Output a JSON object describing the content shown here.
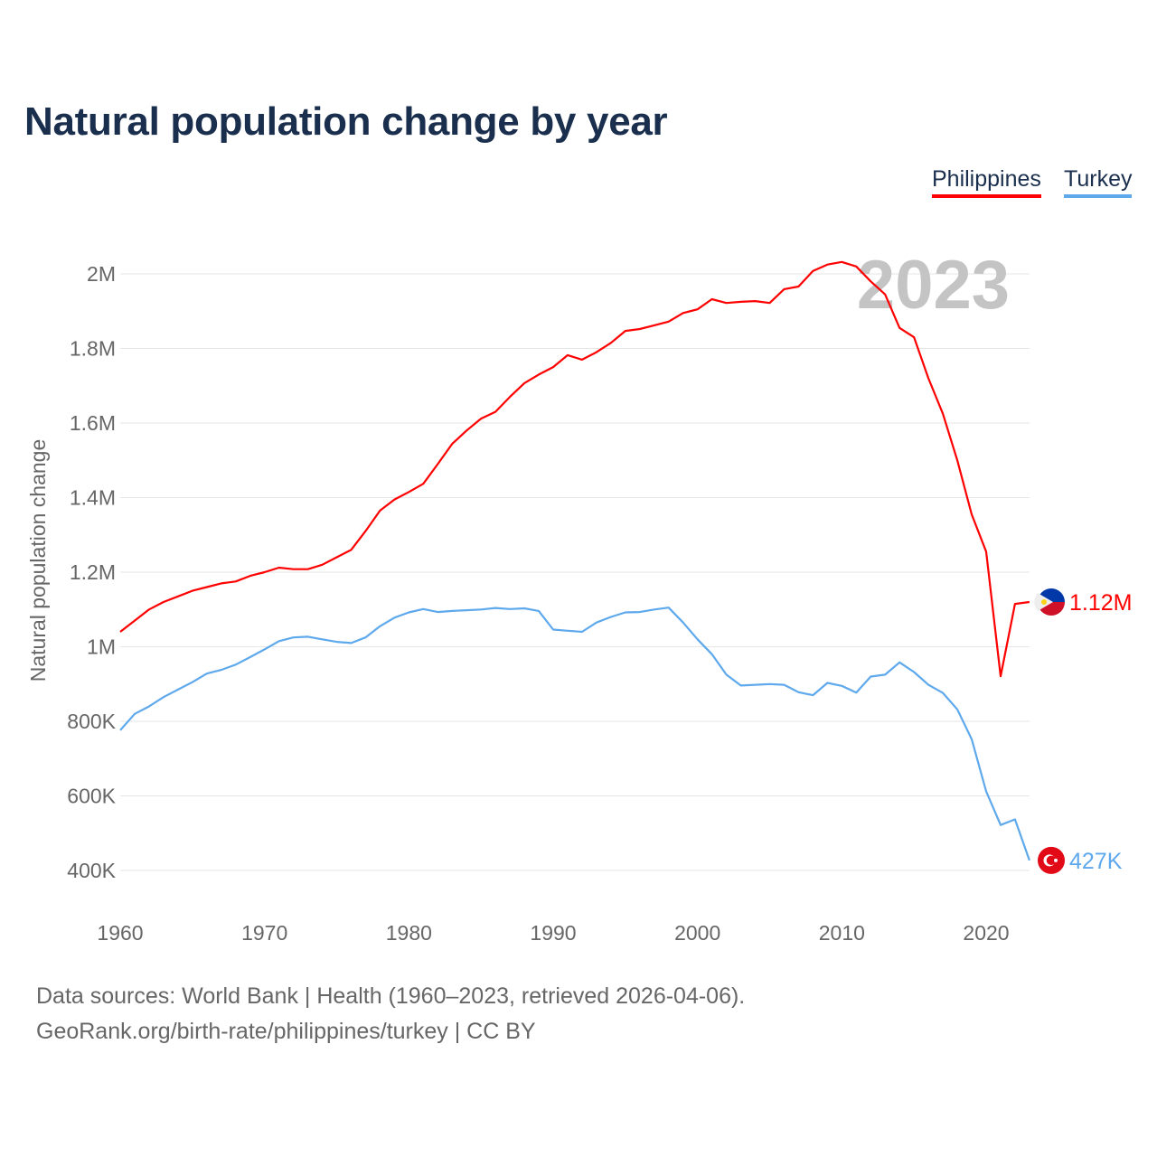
{
  "chart_data": {
    "type": "line",
    "title": "Natural population change by year",
    "ylabel": "Natural population change",
    "xlabel": "",
    "xlim": [
      1960,
      2023
    ],
    "ylim": [
      300000,
      2100000
    ],
    "grid": true,
    "legend_placement": "top-right",
    "year_watermark": "2023",
    "x_ticks": [
      1960,
      1970,
      1980,
      1990,
      2000,
      2010,
      2020
    ],
    "x_tick_labels": [
      "1960",
      "1970",
      "1980",
      "1990",
      "2000",
      "2010",
      "2020"
    ],
    "y_ticks": [
      400000,
      600000,
      800000,
      1000000,
      1200000,
      1400000,
      1600000,
      1800000,
      2000000
    ],
    "y_tick_labels": [
      "400K",
      "600K",
      "800K",
      "1M",
      "1.2M",
      "1.4M",
      "1.6M",
      "1.8M",
      "2M"
    ],
    "x": [
      1960,
      1961,
      1962,
      1963,
      1964,
      1965,
      1966,
      1967,
      1968,
      1969,
      1970,
      1971,
      1972,
      1973,
      1974,
      1975,
      1976,
      1977,
      1978,
      1979,
      1980,
      1981,
      1982,
      1983,
      1984,
      1985,
      1986,
      1987,
      1988,
      1989,
      1990,
      1991,
      1992,
      1993,
      1994,
      1995,
      1996,
      1997,
      1998,
      1999,
      2000,
      2001,
      2002,
      2003,
      2004,
      2005,
      2006,
      2007,
      2008,
      2009,
      2010,
      2011,
      2012,
      2013,
      2014,
      2015,
      2016,
      2017,
      2018,
      2019,
      2020,
      2021,
      2022,
      2023
    ],
    "series": [
      {
        "name": "Philippines",
        "color": "#ff0000",
        "flag": "philippines-flag",
        "end_label": "1.12M",
        "values": [
          1040000,
          1070000,
          1100000,
          1120000,
          1135000,
          1150000,
          1160000,
          1170000,
          1175000,
          1190000,
          1200000,
          1212000,
          1208000,
          1208000,
          1220000,
          1240000,
          1260000,
          1310000,
          1365000,
          1395000,
          1415000,
          1437000,
          1490000,
          1544000,
          1580000,
          1612000,
          1630000,
          1670000,
          1707000,
          1730000,
          1750000,
          1782000,
          1770000,
          1790000,
          1815000,
          1847000,
          1852000,
          1862000,
          1872000,
          1895000,
          1905000,
          1932000,
          1922000,
          1925000,
          1927000,
          1922000,
          1959000,
          1966000,
          2008000,
          2025000,
          2032000,
          2020000,
          1980000,
          1945000,
          1855000,
          1830000,
          1720000,
          1625000,
          1500000,
          1355000,
          1255000,
          921000,
          1115000,
          1120000
        ]
      },
      {
        "name": "Turkey",
        "color": "#5ea8ec",
        "flag": "turkey-flag",
        "end_label": "427K",
        "values": [
          776000,
          820000,
          840000,
          865000,
          885000,
          905000,
          928000,
          938000,
          952000,
          972000,
          993000,
          1015000,
          1025000,
          1027000,
          1020000,
          1013000,
          1010000,
          1025000,
          1055000,
          1078000,
          1092000,
          1101000,
          1093000,
          1096000,
          1098000,
          1100000,
          1104000,
          1101000,
          1103000,
          1096000,
          1046000,
          1043000,
          1040000,
          1065000,
          1080000,
          1092000,
          1093000,
          1100000,
          1105000,
          1065000,
          1020000,
          980000,
          925000,
          896000,
          898000,
          900000,
          898000,
          878000,
          870000,
          903000,
          895000,
          877000,
          920000,
          925000,
          958000,
          932000,
          898000,
          876000,
          832000,
          752000,
          612000,
          522000,
          537000,
          427000
        ]
      }
    ]
  },
  "legend": {
    "philippines": "Philippines",
    "turkey": "Turkey"
  },
  "footer": {
    "sources": "Data sources: World Bank | Health (1960–2023, retrieved 2026-04-06).",
    "credit": "GeoRank.org/birth-rate/philippines/turkey | CC BY"
  }
}
